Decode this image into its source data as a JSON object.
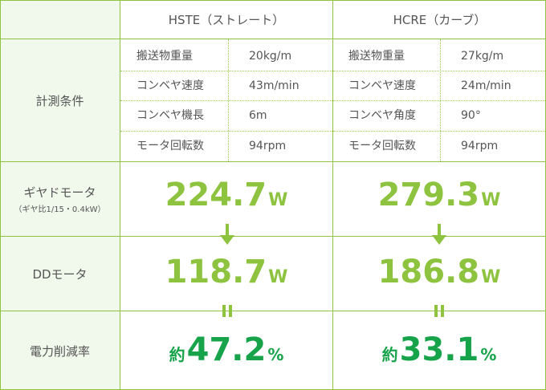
{
  "header": {
    "col1": "HSTE（ストレート）",
    "col2": "HCRE（カーブ）"
  },
  "labels": {
    "conditions": "計測条件",
    "geared_motor": "ギヤドモータ",
    "geared_motor_sub": "（ギヤ比1/15・0.4kW）",
    "dd_motor": "DDモータ",
    "reduction": "電力削減率"
  },
  "conditions": {
    "hste": [
      {
        "name": "搬送物重量",
        "value": "20kg/m"
      },
      {
        "name": "コンベヤ速度",
        "value": "43m/min"
      },
      {
        "name": "コンベヤ機長",
        "value": "6m"
      },
      {
        "name": "モータ回転数",
        "value": "94rpm"
      }
    ],
    "hcre": [
      {
        "name": "搬送物重量",
        "value": "27kg/m"
      },
      {
        "name": "コンベヤ速度",
        "value": "24m/min"
      },
      {
        "name": "コンベヤ角度",
        "value": "90°"
      },
      {
        "name": "モータ回転数",
        "value": "94rpm"
      }
    ]
  },
  "results": {
    "hste": {
      "geared": "224.7",
      "dd": "118.7",
      "power_unit": "W",
      "prefix": "約",
      "reduction": "47.2",
      "pct": "%"
    },
    "hcre": {
      "geared": "279.3",
      "dd": "186.8",
      "power_unit": "W",
      "prefix": "約",
      "reduction": "33.1",
      "pct": "%"
    }
  },
  "colors": {
    "accent": "#8dc33f",
    "result": "#16a34a",
    "label_bg": "#f1f8ec",
    "text": "#555555"
  },
  "icons": {
    "arrow": "arrow-down-icon",
    "equal": "equals-icon"
  }
}
